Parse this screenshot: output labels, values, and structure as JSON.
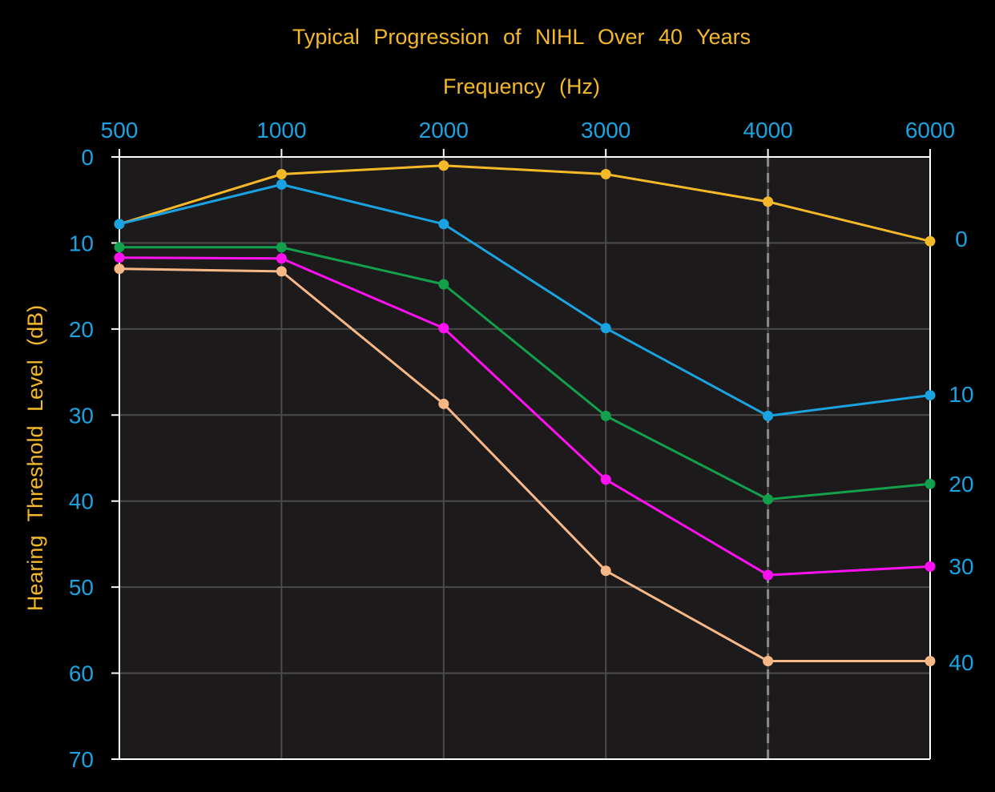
{
  "chart_data": {
    "type": "line",
    "title": "Typical Progression of NIHL Over 40 Years",
    "xlabel": "Frequency (Hz)",
    "ylabel": "Hearing Threshold Level (dB)",
    "x_axis_position": "top",
    "categories": [
      "500",
      "1000",
      "2000",
      "3000",
      "4000",
      "6000"
    ],
    "y_ticks": [
      "0",
      "10",
      "20",
      "30",
      "40",
      "50",
      "60",
      "70"
    ],
    "ylim": [
      0,
      70
    ],
    "y_inverted": true,
    "grid": true,
    "reference_line": {
      "x": "4000",
      "style": "dashed"
    },
    "right_labels": [
      "0",
      "10",
      "20",
      "30",
      "40"
    ],
    "series": [
      {
        "color": "#f5b829",
        "values": [
          7.8,
          2.0,
          1.0,
          2.0,
          5.2,
          9.8
        ]
      },
      {
        "color": "#1aa3e0",
        "values": [
          7.8,
          3.2,
          7.8,
          19.9,
          30.1,
          27.7
        ]
      },
      {
        "color": "#12a04c",
        "values": [
          10.5,
          10.5,
          14.8,
          30.1,
          39.8,
          38.0
        ]
      },
      {
        "color": "#ff10f0",
        "values": [
          11.7,
          11.8,
          19.9,
          37.5,
          48.6,
          47.6
        ]
      },
      {
        "color": "#f8b787",
        "values": [
          13.0,
          13.3,
          28.7,
          48.1,
          58.6,
          58.6
        ]
      }
    ],
    "colors": {
      "background": "#000000",
      "plot_background": "#1c1a1a",
      "grid": "#4b4b4b",
      "frame": "#ffffff",
      "title": "#f5b829",
      "axis_title": "#f5b829",
      "tick_labels": "#1aa3e0",
      "reference_line": "#8a8a8a"
    }
  }
}
